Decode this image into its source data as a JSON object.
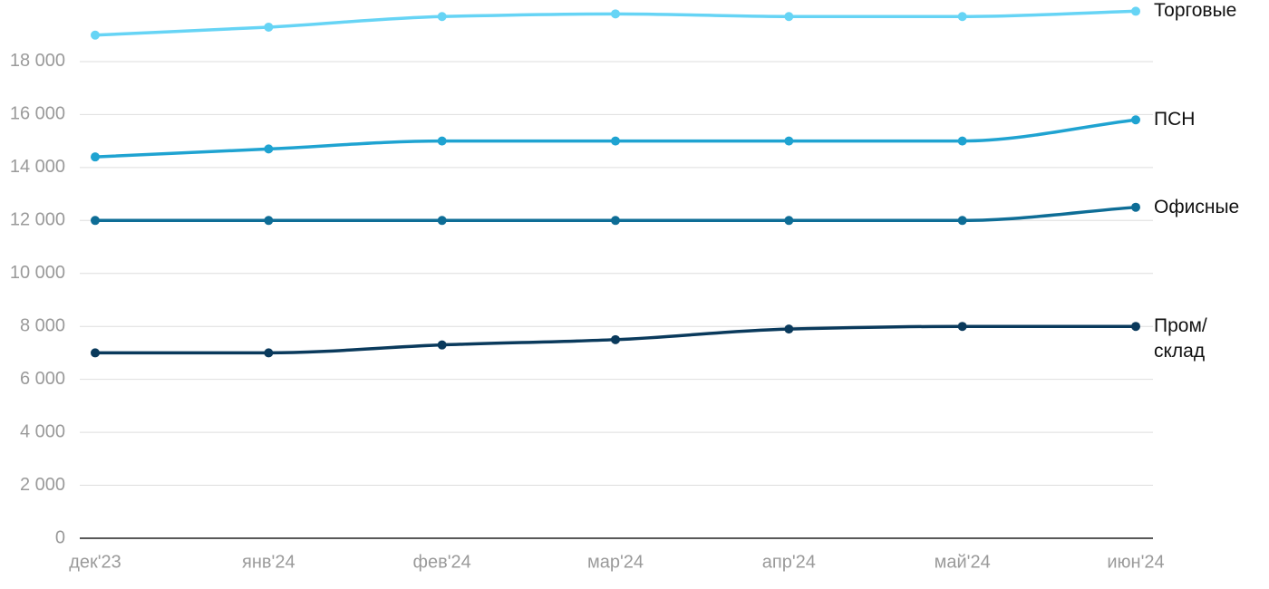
{
  "chart_data": {
    "type": "line",
    "categories": [
      "дек'23",
      "янв'24",
      "фев'24",
      "мар'24",
      "апр'24",
      "май'24",
      "июн'24"
    ],
    "series": [
      {
        "name": "Торговые",
        "color": "#66d4f5",
        "values": [
          19000,
          19300,
          19700,
          19800,
          19700,
          19700,
          19900
        ]
      },
      {
        "name": "ПСН",
        "color": "#1fa3d1",
        "values": [
          14400,
          14700,
          15000,
          15000,
          15000,
          15000,
          15800
        ]
      },
      {
        "name": "Офисные",
        "color": "#0e6d96",
        "values": [
          12000,
          12000,
          12000,
          12000,
          12000,
          12000,
          12500
        ]
      },
      {
        "name": "Пром/\nсклад",
        "color": "#0a3a5c",
        "values": [
          7000,
          7000,
          7300,
          7500,
          7900,
          8000,
          8000
        ]
      }
    ],
    "ylim": [
      0,
      20000
    ],
    "yticks": [
      0,
      {
        "value": 2000,
        "label": "2 000"
      },
      {
        "value": 4000,
        "label": "4 000"
      },
      {
        "value": 6000,
        "label": "6 000"
      },
      {
        "value": 8000,
        "label": "8 000"
      },
      {
        "value": 10000,
        "label": "10 000"
      },
      {
        "value": 12000,
        "label": "12 000"
      },
      {
        "value": 14000,
        "label": "14 000"
      },
      {
        "value": 16000,
        "label": "16 000"
      },
      {
        "value": 18000,
        "label": "18 000"
      }
    ],
    "grid": true
  }
}
